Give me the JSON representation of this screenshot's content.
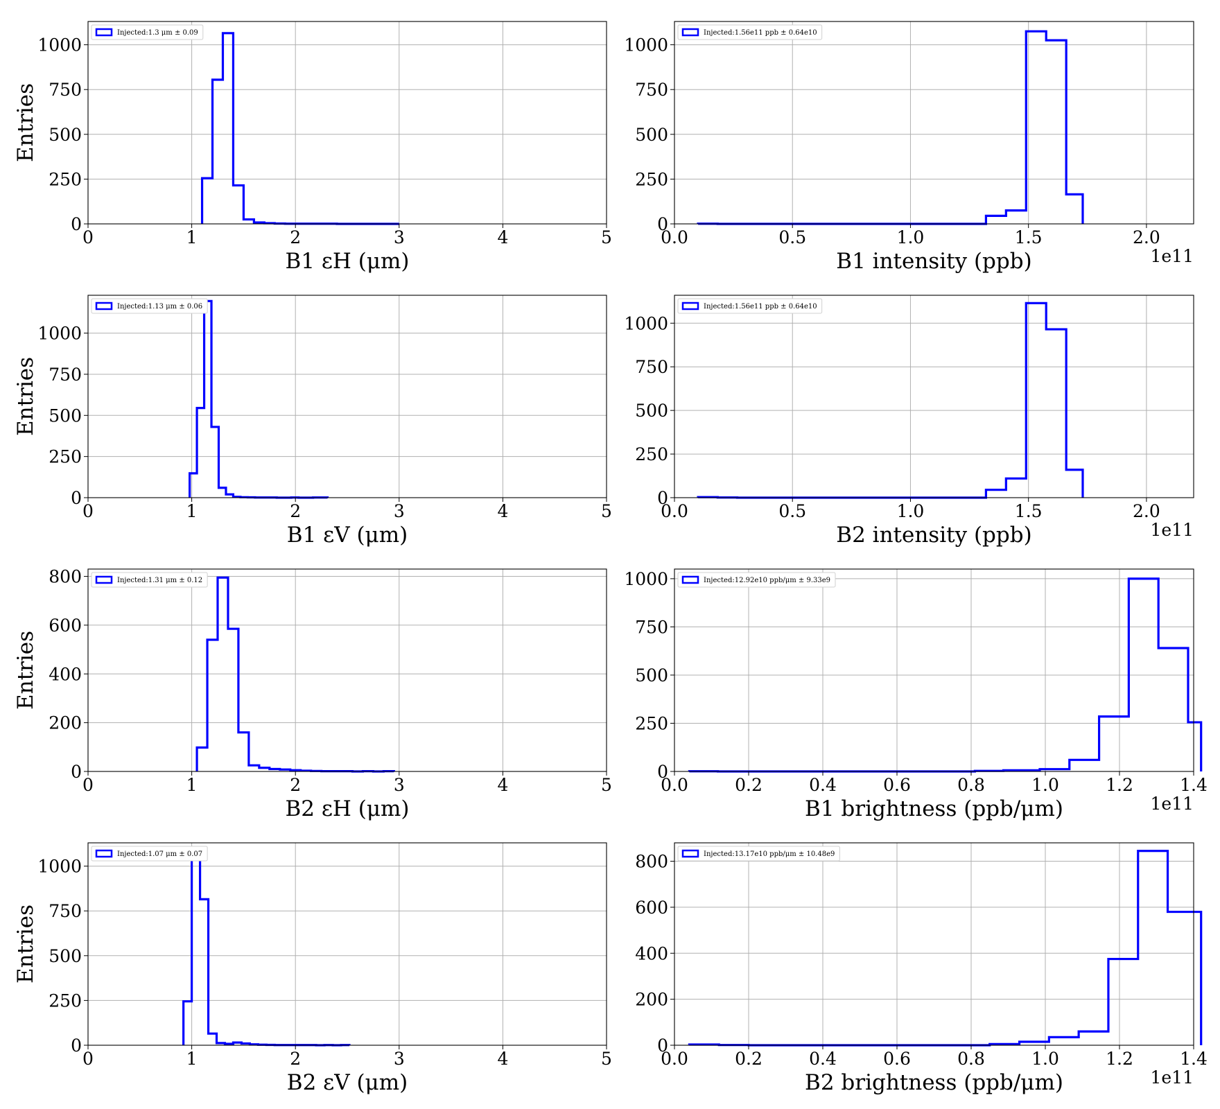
{
  "figure": {
    "style": {
      "line_color": "#0000ff",
      "grid_color": "#b0b0b0",
      "frame_color": "#000000",
      "background": "#ffffff"
    },
    "panel_order": [
      "B1 eps_H",
      "B1 intensity",
      "B1 eps_V",
      "B2 intensity",
      "B2 eps_H",
      "B1 brightness",
      "B2 eps_V",
      "B2 brightness"
    ]
  },
  "chart_data": [
    {
      "type": "histogram",
      "xlabel": "B1 εH (μm)",
      "ylabel": "Entries",
      "legend": "Injected:1.3 μm ± 0.09",
      "legend_position": "top-left",
      "grid": true,
      "xlim": [
        0,
        5
      ],
      "ylim": [
        0,
        1130
      ],
      "xticks": [
        0,
        1,
        2,
        3,
        4,
        5
      ],
      "xtick_labels": [
        "0",
        "1",
        "2",
        "3",
        "4",
        "5"
      ],
      "yticks": [
        0,
        250,
        500,
        750,
        1000
      ],
      "ytick_labels": [
        "0",
        "250",
        "500",
        "750",
        "1000"
      ],
      "x_offset_label": "",
      "bin_edges": [
        1.1,
        1.2,
        1.3,
        1.4,
        1.5,
        1.6,
        1.7,
        1.8,
        1.9,
        2.0,
        2.1,
        2.2,
        2.3,
        2.4,
        2.5,
        2.6,
        2.7,
        2.8,
        2.9,
        3.0
      ],
      "counts": [
        255,
        805,
        1065,
        215,
        25,
        8,
        4,
        2,
        1,
        1,
        1,
        1,
        1,
        0,
        0,
        0,
        0,
        0,
        0
      ]
    },
    {
      "type": "histogram",
      "xlabel": "B1 intensity (ppb)",
      "ylabel": "",
      "legend": "Injected:1.56e11 ppb ± 0.64e10",
      "legend_position": "top-left",
      "grid": true,
      "xlim": [
        0,
        2.2
      ],
      "ylim": [
        0,
        1130
      ],
      "xticks": [
        0,
        0.5,
        1.0,
        1.5,
        2.0
      ],
      "xtick_labels": [
        "0.0",
        "0.5",
        "1.0",
        "1.5",
        "2.0"
      ],
      "yticks": [
        0,
        250,
        500,
        750,
        1000
      ],
      "ytick_labels": [
        "0",
        "250",
        "500",
        "750",
        "1000"
      ],
      "x_offset_label": "1e11",
      "bin_edges": [
        0.1,
        0.183,
        0.266,
        0.349,
        0.432,
        0.515,
        0.598,
        0.681,
        0.764,
        0.847,
        0.93,
        1.013,
        1.096,
        1.179,
        1.262,
        1.32,
        1.405,
        1.49,
        1.575,
        1.66,
        1.73
      ],
      "counts": [
        1,
        0,
        0,
        0,
        0,
        0,
        0,
        0,
        0,
        0,
        0,
        0,
        0,
        0,
        0,
        45,
        75,
        1075,
        1025,
        165
      ]
    },
    {
      "type": "histogram",
      "xlabel": "B1 εV (μm)",
      "ylabel": "Entries",
      "legend": "Injected:1.13 μm ± 0.06",
      "legend_position": "top-left",
      "grid": true,
      "xlim": [
        0,
        5
      ],
      "ylim": [
        0,
        1230
      ],
      "xticks": [
        0,
        1,
        2,
        3,
        4,
        5
      ],
      "xtick_labels": [
        "0",
        "1",
        "2",
        "3",
        "4",
        "5"
      ],
      "yticks": [
        0,
        250,
        500,
        750,
        1000
      ],
      "ytick_labels": [
        "0",
        "250",
        "500",
        "750",
        "1000"
      ],
      "x_offset_label": "",
      "bin_edges": [
        0.98,
        1.05,
        1.12,
        1.19,
        1.26,
        1.33,
        1.4,
        1.47,
        1.54,
        1.61,
        1.68,
        1.75,
        1.82,
        1.89,
        1.96,
        2.03,
        2.1,
        2.17,
        2.24,
        2.31
      ],
      "counts": [
        148,
        545,
        1195,
        430,
        60,
        20,
        5,
        3,
        2,
        1,
        1,
        1,
        0,
        0,
        1,
        0,
        0,
        1,
        1
      ]
    },
    {
      "type": "histogram",
      "xlabel": "B2 intensity (ppb)",
      "ylabel": "",
      "legend": "Injected:1.56e11 ppb ± 0.64e10",
      "legend_position": "top-left",
      "grid": true,
      "xlim": [
        0,
        2.2
      ],
      "ylim": [
        0,
        1160
      ],
      "xticks": [
        0,
        0.5,
        1.0,
        1.5,
        2.0
      ],
      "xtick_labels": [
        "0.0",
        "0.5",
        "1.0",
        "1.5",
        "2.0"
      ],
      "yticks": [
        0,
        250,
        500,
        750,
        1000
      ],
      "ytick_labels": [
        "0",
        "250",
        "500",
        "750",
        "1000"
      ],
      "x_offset_label": "1e11",
      "bin_edges": [
        0.1,
        0.183,
        0.266,
        0.349,
        0.432,
        0.515,
        0.598,
        0.681,
        0.764,
        0.847,
        0.93,
        1.013,
        1.096,
        1.179,
        1.262,
        1.32,
        1.405,
        1.49,
        1.575,
        1.66,
        1.73
      ],
      "counts": [
        3,
        1,
        0,
        0,
        0,
        0,
        0,
        0,
        0,
        0,
        0,
        0,
        0,
        0,
        0,
        45,
        110,
        1115,
        965,
        160
      ]
    },
    {
      "type": "histogram",
      "xlabel": "B2 εH (μm)",
      "ylabel": "Entries",
      "legend": "Injected:1.31 μm ± 0.12",
      "legend_position": "top-left",
      "grid": true,
      "xlim": [
        0,
        5
      ],
      "ylim": [
        0,
        830
      ],
      "xticks": [
        0,
        1,
        2,
        3,
        4,
        5
      ],
      "xtick_labels": [
        "0",
        "1",
        "2",
        "3",
        "4",
        "5"
      ],
      "yticks": [
        0,
        200,
        400,
        600,
        800
      ],
      "ytick_labels": [
        "0",
        "200",
        "400",
        "600",
        "800"
      ],
      "x_offset_label": "",
      "bin_edges": [
        1.05,
        1.15,
        1.25,
        1.35,
        1.45,
        1.55,
        1.65,
        1.75,
        1.85,
        1.95,
        2.05,
        2.15,
        2.25,
        2.35,
        2.45,
        2.55,
        2.65,
        2.75,
        2.85,
        2.95
      ],
      "counts": [
        98,
        540,
        795,
        585,
        160,
        25,
        15,
        10,
        8,
        5,
        3,
        2,
        1,
        1,
        1,
        0,
        1,
        0,
        1
      ]
    },
    {
      "type": "histogram",
      "xlabel": "B1 brightness (ppb/μm)",
      "ylabel": "",
      "legend": "Injected:12.92e10 ppb/μm ± 9.33e9",
      "legend_position": "top-left",
      "grid": true,
      "xlim": [
        0,
        1.4
      ],
      "ylim": [
        0,
        1050
      ],
      "xticks": [
        0,
        0.2,
        0.4,
        0.6,
        0.8,
        1.0,
        1.2,
        1.4
      ],
      "xtick_labels": [
        "0.0",
        "0.2",
        "0.4",
        "0.6",
        "0.8",
        "1.0",
        "1.2",
        "1.4"
      ],
      "yticks": [
        0,
        250,
        500,
        750,
        1000
      ],
      "ytick_labels": [
        "0",
        "250",
        "500",
        "750",
        "1000"
      ],
      "x_offset_label": "1e11",
      "bin_edges": [
        0.04,
        0.117,
        0.194,
        0.271,
        0.348,
        0.425,
        0.502,
        0.579,
        0.656,
        0.733,
        0.81,
        0.887,
        0.985,
        1.065,
        1.145,
        1.225,
        1.305,
        1.385,
        1.42
      ],
      "counts": [
        1,
        0,
        0,
        0,
        0,
        0,
        0,
        0,
        0,
        0,
        3,
        6,
        12,
        60,
        285,
        1000,
        640,
        255
      ]
    },
    {
      "type": "histogram",
      "xlabel": "B2 εV (μm)",
      "ylabel": "Entries",
      "legend": "Injected:1.07 μm ± 0.07",
      "legend_position": "top-left",
      "grid": true,
      "xlim": [
        0,
        5
      ],
      "ylim": [
        0,
        1130
      ],
      "xticks": [
        0,
        1,
        2,
        3,
        4,
        5
      ],
      "xtick_labels": [
        "0",
        "1",
        "2",
        "3",
        "4",
        "5"
      ],
      "yticks": [
        0,
        250,
        500,
        750,
        1000
      ],
      "ytick_labels": [
        "0",
        "250",
        "500",
        "750",
        "1000"
      ],
      "x_offset_label": "",
      "bin_edges": [
        0.92,
        1.0,
        1.08,
        1.16,
        1.24,
        1.32,
        1.4,
        1.48,
        1.56,
        1.64,
        1.72,
        1.8,
        1.88,
        1.96,
        2.04,
        2.12,
        2.2,
        2.28,
        2.36,
        2.44,
        2.52
      ],
      "counts": [
        245,
        1085,
        815,
        65,
        12,
        8,
        15,
        10,
        5,
        3,
        2,
        1,
        1,
        1,
        1,
        1,
        0,
        1,
        0,
        1
      ]
    },
    {
      "type": "histogram",
      "xlabel": "B2 brightness (ppb/μm)",
      "ylabel": "",
      "legend": "Injected:13.17e10 ppb/μm ± 10.48e9",
      "legend_position": "top-left",
      "grid": true,
      "xlim": [
        0,
        1.4
      ],
      "ylim": [
        0,
        880
      ],
      "xticks": [
        0,
        0.2,
        0.4,
        0.6,
        0.8,
        1.0,
        1.2,
        1.4
      ],
      "xtick_labels": [
        "0.0",
        "0.2",
        "0.4",
        "0.6",
        "0.8",
        "1.0",
        "1.2",
        "1.4"
      ],
      "yticks": [
        0,
        200,
        400,
        600,
        800
      ],
      "ytick_labels": [
        "0",
        "200",
        "400",
        "600",
        "800"
      ],
      "x_offset_label": "1e11",
      "bin_edges": [
        0.04,
        0.12,
        0.2,
        0.28,
        0.36,
        0.44,
        0.52,
        0.6,
        0.68,
        0.76,
        0.85,
        0.93,
        1.01,
        1.09,
        1.17,
        1.25,
        1.33,
        1.42
      ],
      "counts": [
        3,
        1,
        0,
        0,
        0,
        0,
        0,
        0,
        0,
        0,
        5,
        15,
        35,
        60,
        375,
        845,
        580
      ]
    }
  ]
}
